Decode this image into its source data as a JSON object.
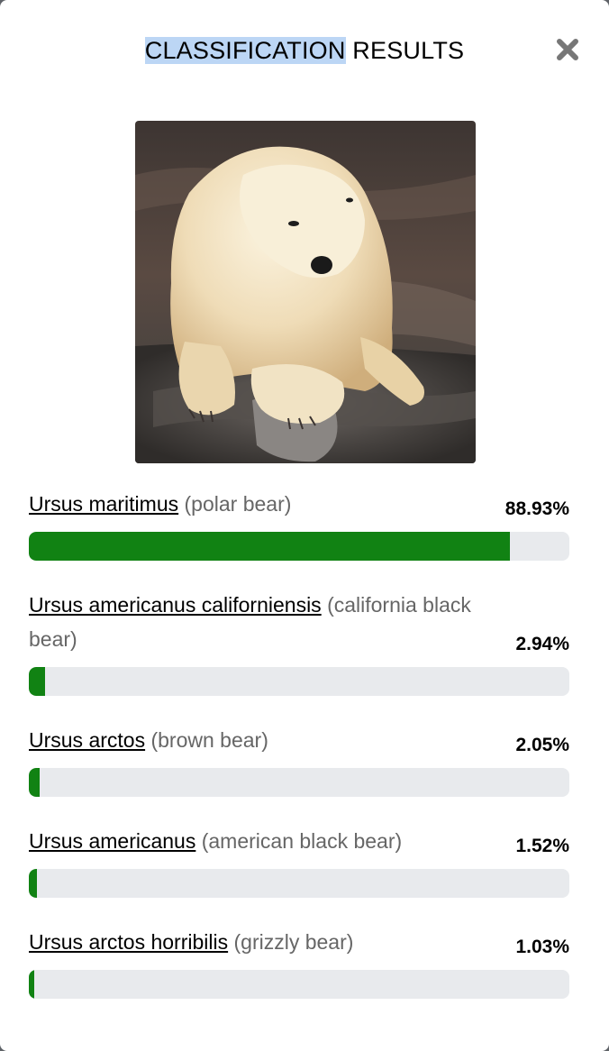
{
  "header": {
    "title_highlighted": "CLASSIFICATION",
    "title_rest": "RESULTS"
  },
  "colors": {
    "bar_fill": "#118213",
    "bar_track": "#e8eaed",
    "title_highlight": "#bcd6f5"
  },
  "results": [
    {
      "scientific": "Ursus maritimus",
      "common": "(polar bear)",
      "percent": "88.93%",
      "value": 88.93
    },
    {
      "scientific": "Ursus americanus californiensis",
      "common": "(california black bear)",
      "percent": "2.94%",
      "value": 2.94
    },
    {
      "scientific": "Ursus arctos",
      "common": "(brown bear)",
      "percent": "2.05%",
      "value": 2.05
    },
    {
      "scientific": "Ursus americanus",
      "common": "(american black bear)",
      "percent": "1.52%",
      "value": 1.52
    },
    {
      "scientific": "Ursus arctos horribilis",
      "common": "(grizzly bear)",
      "percent": "1.03%",
      "value": 1.03
    }
  ]
}
